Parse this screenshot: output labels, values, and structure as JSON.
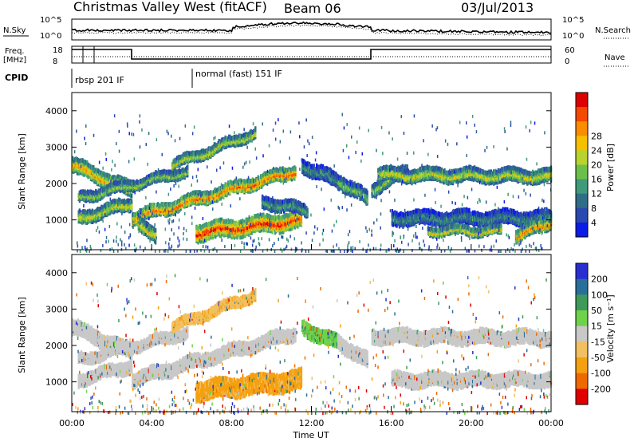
{
  "header": {
    "station": "Christmas Valley West (fitACF)",
    "beam": "Beam 06",
    "date": "03/Jul/2013"
  },
  "top_panels": {
    "nsky_label": "N.Sky",
    "nsearch_label": "N.Search",
    "noise_ticks": [
      "10^5",
      "10^0"
    ],
    "freq_label": "Freq.",
    "freq_unit": "[MHz]",
    "freq_ticks": [
      "18",
      "8"
    ],
    "nave_label": "Nave",
    "nave_ticks": [
      "60",
      "0"
    ],
    "cpid_label": "CPID",
    "cpid_modes": [
      {
        "name": "rbsp 201 IF",
        "start": 0.0
      },
      {
        "name": "normal (fast) 151 IF",
        "start": 6.0
      }
    ]
  },
  "chart_data": [
    {
      "type": "heatmap",
      "name": "power",
      "ylabel": "Slant Range [km]",
      "x_range": [
        0,
        24
      ],
      "y_range": [
        180,
        4500
      ],
      "y_ticks": [
        "1000",
        "2000",
        "3000",
        "4000"
      ],
      "colorbar": {
        "label": "Power [dB]",
        "ticks": [
          "4",
          "8",
          "12",
          "16",
          "20",
          "24",
          "28"
        ],
        "colors": [
          "#0a1ce6",
          "#2a49b0",
          "#2f6e86",
          "#3f9a7a",
          "#6cc04a",
          "#b9d32e",
          "#f5c000",
          "#fa8c00",
          "#f54800",
          "#dd0000"
        ]
      },
      "bands": [
        {
          "t0": 0.0,
          "t1": 3.0,
          "r0": 2500,
          "r1": 1800,
          "w": 330,
          "power": 24
        },
        {
          "t0": 0.3,
          "t1": 5.8,
          "r0": 1600,
          "r1": 2350,
          "w": 200,
          "power": 18
        },
        {
          "t0": 3.0,
          "t1": 11.2,
          "r0": 1050,
          "r1": 2350,
          "w": 260,
          "power": 27
        },
        {
          "t0": 5.0,
          "t1": 9.2,
          "r0": 2500,
          "r1": 3400,
          "w": 200,
          "power": 20
        },
        {
          "t0": 6.2,
          "t1": 11.5,
          "r0": 650,
          "r1": 1000,
          "w": 380,
          "power": 30
        },
        {
          "t0": 9.5,
          "t1": 11.8,
          "r0": 1500,
          "r1": 1250,
          "w": 250,
          "power": 14
        },
        {
          "t0": 11.5,
          "t1": 13.3,
          "r0": 2500,
          "r1": 2050,
          "w": 300,
          "power": 12
        },
        {
          "t0": 13.3,
          "t1": 14.8,
          "r0": 2100,
          "r1": 1550,
          "w": 300,
          "power": 16
        },
        {
          "t0": 15.0,
          "t1": 16.8,
          "r0": 1850,
          "r1": 2350,
          "w": 280,
          "power": 18
        },
        {
          "t0": 15.3,
          "t1": 24.0,
          "r0": 2250,
          "r1": 2200,
          "w": 280,
          "power": 20
        },
        {
          "t0": 16.0,
          "t1": 24.0,
          "r0": 1050,
          "r1": 1050,
          "w": 300,
          "power": 12
        },
        {
          "t0": 17.8,
          "t1": 21.5,
          "r0": 700,
          "r1": 700,
          "w": 160,
          "power": 22
        },
        {
          "t0": 22.2,
          "t1": 24.0,
          "r0": 550,
          "r1": 950,
          "w": 250,
          "power": 26
        },
        {
          "t0": 3.3,
          "t1": 4.2,
          "r0": 1000,
          "r1": 500,
          "w": 300,
          "power": 22
        },
        {
          "t0": 0.3,
          "t1": 3.0,
          "r0": 1050,
          "r1": 1450,
          "w": 260,
          "power": 20
        }
      ]
    },
    {
      "type": "heatmap",
      "name": "velocity",
      "ylabel": "Slant Range [km]",
      "xlabel": "Time UT",
      "x_range": [
        0,
        24
      ],
      "y_range": [
        180,
        4500
      ],
      "y_ticks": [
        "1000",
        "2000",
        "3000",
        "4000"
      ],
      "x_ticks": [
        "00:00",
        "04:00",
        "08:00",
        "12:00",
        "16:00",
        "20:00",
        "00:00"
      ],
      "colorbar": {
        "label": "Velocity [m s⁻¹]",
        "ticks": [
          "200",
          "100",
          "50",
          "15",
          "-15",
          "-50",
          "-100",
          "-200"
        ],
        "colors": [
          "#2a2ed0",
          "#2a6f9a",
          "#3f9a5a",
          "#6ed24a",
          "#c8c8c8",
          "#f2c060",
          "#f5a010",
          "#ee6a00",
          "#e00000"
        ]
      },
      "bands": [
        {
          "t0": 0.0,
          "t1": 3.0,
          "r0": 2500,
          "r1": 1800,
          "w": 330,
          "velocity": 0
        },
        {
          "t0": 0.3,
          "t1": 5.8,
          "r0": 1600,
          "r1": 2350,
          "w": 220,
          "velocity": 0
        },
        {
          "t0": 3.0,
          "t1": 11.2,
          "r0": 1050,
          "r1": 2350,
          "w": 280,
          "velocity": 0
        },
        {
          "t0": 5.0,
          "t1": 9.2,
          "r0": 2500,
          "r1": 3400,
          "w": 200,
          "velocity": -40
        },
        {
          "t0": 6.2,
          "t1": 11.5,
          "r0": 750,
          "r1": 1050,
          "w": 450,
          "velocity": -60
        },
        {
          "t0": 11.5,
          "t1": 13.3,
          "r0": 2500,
          "r1": 2050,
          "w": 300,
          "velocity": 40
        },
        {
          "t0": 13.3,
          "t1": 14.8,
          "r0": 2100,
          "r1": 1550,
          "w": 320,
          "velocity": 0
        },
        {
          "t0": 15.0,
          "t1": 24.0,
          "r0": 2250,
          "r1": 2200,
          "w": 300,
          "velocity": 0
        },
        {
          "t0": 16.0,
          "t1": 24.0,
          "r0": 1050,
          "r1": 1050,
          "w": 300,
          "velocity": 0
        },
        {
          "t0": 0.3,
          "t1": 3.0,
          "r0": 1050,
          "r1": 1450,
          "w": 260,
          "velocity": 0
        }
      ]
    }
  ]
}
